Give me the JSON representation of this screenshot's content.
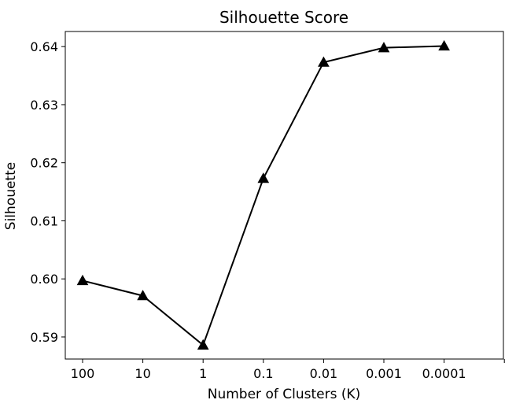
{
  "chart_data": {
    "type": "line",
    "title": "Silhouette Score",
    "xlabel": "Number of Clusters (K)",
    "ylabel": "Silhouette",
    "categories": [
      "100",
      "10",
      "1",
      "0.1",
      "0.01",
      "0.001",
      "0.0001"
    ],
    "series": [
      {
        "values": [
          0.5997,
          0.5971,
          0.5886,
          0.6173,
          0.6373,
          0.6398,
          0.6401
        ],
        "marker": "triangle",
        "color": "#000000"
      }
    ],
    "yticks": [
      "0.59",
      "0.60",
      "0.61",
      "0.62",
      "0.63",
      "0.64"
    ],
    "ylim": [
      0.5862,
      0.6426
    ],
    "grid": false
  }
}
